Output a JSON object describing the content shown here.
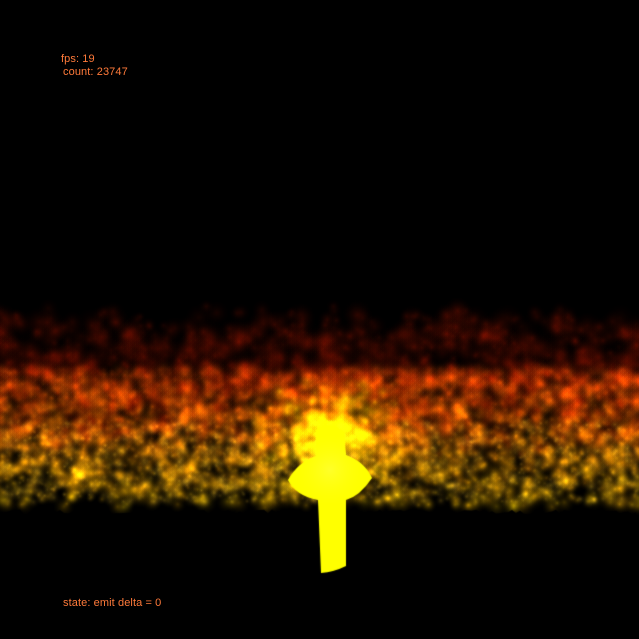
{
  "hud": {
    "fps_text": "fps: 19",
    "count_text": "count: 23747",
    "state_text": "state: emit delta = 0",
    "fps": 19,
    "particle_count": 23747,
    "emit_delta": 0
  },
  "colors": {
    "background": "#000000",
    "hud_text": "#ff7a3a",
    "flame_hot": "#ffff00",
    "flame_mid": "#ff8a00",
    "flame_cool": "#b01800",
    "ember_dark": "#3a0500"
  },
  "scene": {
    "emitter_shape": "cross-with-stem",
    "effect": "particle-fire"
  }
}
